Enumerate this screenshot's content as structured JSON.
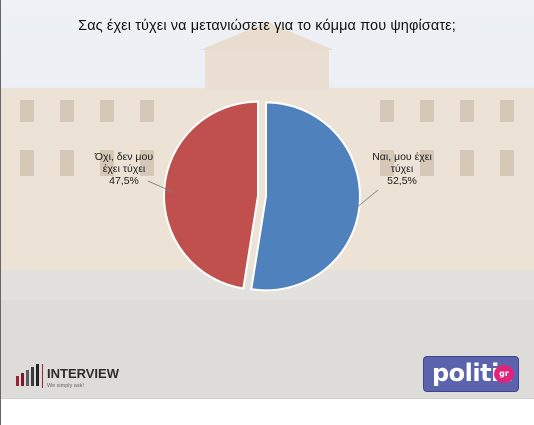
{
  "title": "Σας έχει τύχει να μετανιώσετε για το κόμμα  που ψηφίσατε;",
  "chart_data": {
    "type": "pie",
    "title": "Σας έχει τύχει να μετανιώσετε για το κόμμα  που ψηφίσατε;",
    "slices": [
      {
        "label_lines": [
          "Ναι, μου έχει",
          "τύχει",
          "52,5%"
        ],
        "value": 52.5,
        "color": "#4f81bd"
      },
      {
        "label_lines": [
          "Όχι, δεν μου",
          "έχει τύχει",
          "47,5%"
        ],
        "value": 47.5,
        "color": "#c0504d"
      }
    ],
    "start_angle_deg": 0,
    "direction": "clockwise",
    "legend": "none"
  },
  "logos": {
    "interview_name": "INTERVIEW",
    "interview_tagline": "We simply ask!",
    "politic_name": "politic",
    "politic_suffix": "gr"
  }
}
